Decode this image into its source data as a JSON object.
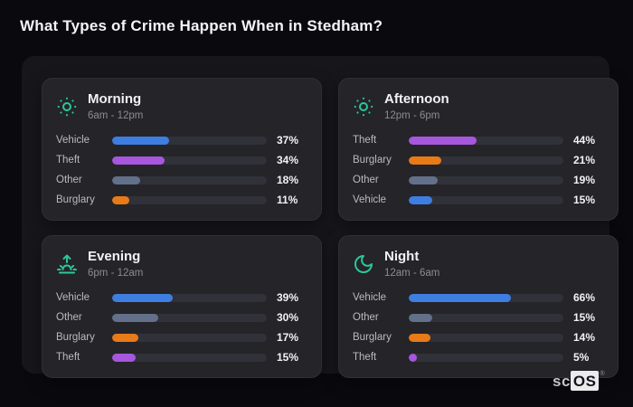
{
  "title": "What Types of Crime Happen When in Stedham?",
  "brand": {
    "prefix": "sc",
    "boxed": "OS",
    "mark": "®"
  },
  "colors": {
    "page_bg": "#0a0a0e",
    "panel_bg": "#17171b",
    "card_bg": "#242429",
    "track": "#313139",
    "icon_accent": "#2bc79b",
    "vehicle": "#3e7ee0",
    "theft": "#a657dd",
    "other": "#637089",
    "burglary": "#e87a18"
  },
  "cards": [
    {
      "id": "morning",
      "icon": "sun-icon",
      "title": "Morning",
      "time_range": "6am - 12pm",
      "rows": [
        {
          "label": "Vehicle",
          "pct": 37,
          "pct_label": "37%",
          "color": "#3e7ee0"
        },
        {
          "label": "Theft",
          "pct": 34,
          "pct_label": "34%",
          "color": "#a657dd"
        },
        {
          "label": "Other",
          "pct": 18,
          "pct_label": "18%",
          "color": "#637089"
        },
        {
          "label": "Burglary",
          "pct": 11,
          "pct_label": "11%",
          "color": "#e87a18"
        }
      ]
    },
    {
      "id": "afternoon",
      "icon": "sun-icon",
      "title": "Afternoon",
      "time_range": "12pm - 6pm",
      "rows": [
        {
          "label": "Theft",
          "pct": 44,
          "pct_label": "44%",
          "color": "#a657dd"
        },
        {
          "label": "Burglary",
          "pct": 21,
          "pct_label": "21%",
          "color": "#e87a18"
        },
        {
          "label": "Other",
          "pct": 19,
          "pct_label": "19%",
          "color": "#637089"
        },
        {
          "label": "Vehicle",
          "pct": 15,
          "pct_label": "15%",
          "color": "#3e7ee0"
        }
      ]
    },
    {
      "id": "evening",
      "icon": "sunrise-icon",
      "title": "Evening",
      "time_range": "6pm - 12am",
      "rows": [
        {
          "label": "Vehicle",
          "pct": 39,
          "pct_label": "39%",
          "color": "#3e7ee0"
        },
        {
          "label": "Other",
          "pct": 30,
          "pct_label": "30%",
          "color": "#637089"
        },
        {
          "label": "Burglary",
          "pct": 17,
          "pct_label": "17%",
          "color": "#e87a18"
        },
        {
          "label": "Theft",
          "pct": 15,
          "pct_label": "15%",
          "color": "#a657dd"
        }
      ]
    },
    {
      "id": "night",
      "icon": "moon-icon",
      "title": "Night",
      "time_range": "12am - 6am",
      "rows": [
        {
          "label": "Vehicle",
          "pct": 66,
          "pct_label": "66%",
          "color": "#3e7ee0"
        },
        {
          "label": "Other",
          "pct": 15,
          "pct_label": "15%",
          "color": "#637089"
        },
        {
          "label": "Burglary",
          "pct": 14,
          "pct_label": "14%",
          "color": "#e87a18"
        },
        {
          "label": "Theft",
          "pct": 5,
          "pct_label": "5%",
          "color": "#a657dd"
        }
      ]
    }
  ],
  "chart_data": [
    {
      "type": "bar",
      "orientation": "horizontal",
      "title": "Morning",
      "subtitle": "6am - 12pm",
      "categories": [
        "Vehicle",
        "Theft",
        "Other",
        "Burglary"
      ],
      "values": [
        37,
        34,
        18,
        11
      ],
      "unit": "%",
      "xlim": [
        0,
        100
      ],
      "grid": false,
      "legend": false
    },
    {
      "type": "bar",
      "orientation": "horizontal",
      "title": "Afternoon",
      "subtitle": "12pm - 6pm",
      "categories": [
        "Theft",
        "Burglary",
        "Other",
        "Vehicle"
      ],
      "values": [
        44,
        21,
        19,
        15
      ],
      "unit": "%",
      "xlim": [
        0,
        100
      ],
      "grid": false,
      "legend": false
    },
    {
      "type": "bar",
      "orientation": "horizontal",
      "title": "Evening",
      "subtitle": "6pm - 12am",
      "categories": [
        "Vehicle",
        "Other",
        "Burglary",
        "Theft"
      ],
      "values": [
        39,
        30,
        17,
        15
      ],
      "unit": "%",
      "xlim": [
        0,
        100
      ],
      "grid": false,
      "legend": false
    },
    {
      "type": "bar",
      "orientation": "horizontal",
      "title": "Night",
      "subtitle": "12am - 6am",
      "categories": [
        "Vehicle",
        "Other",
        "Burglary",
        "Theft"
      ],
      "values": [
        66,
        15,
        14,
        5
      ],
      "unit": "%",
      "xlim": [
        0,
        100
      ],
      "grid": false,
      "legend": false
    }
  ]
}
